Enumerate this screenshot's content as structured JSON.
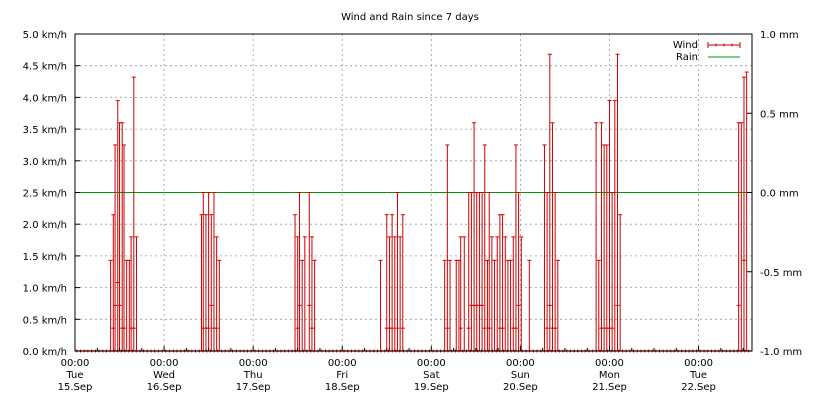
{
  "chart_data": {
    "type": "line",
    "title": "Wind and Rain since 7 days",
    "xlabel": "",
    "ylabel": "",
    "grid": true,
    "legend_position": "top-right",
    "x_unit": "days",
    "xlim": [
      0,
      7.6
    ],
    "ylim": [
      0,
      5
    ],
    "y2lim": [
      -1,
      1
    ],
    "y_ticks": [
      "0.0 km/h",
      "0.5 km/h",
      "1.0 km/h",
      "1.5 km/h",
      "2.0 km/h",
      "2.5 km/h",
      "3.0 km/h",
      "3.5 km/h",
      "4.0 km/h",
      "4.5 km/h",
      "5.0 km/h"
    ],
    "y2_ticks": [
      "-1.0 mm",
      "-0.5 mm",
      "0.0 mm",
      "0.5 mm",
      "1.0 mm"
    ],
    "x_ticks": [
      {
        "time": "00:00",
        "day": "Tue",
        "date": "15.Sep"
      },
      {
        "time": "00:00",
        "day": "Wed",
        "date": "16.Sep"
      },
      {
        "time": "00:00",
        "day": "Thu",
        "date": "17.Sep"
      },
      {
        "time": "00:00",
        "day": "Fri",
        "date": "18.Sep"
      },
      {
        "time": "00:00",
        "day": "Sat",
        "date": "19.Sep"
      },
      {
        "time": "00:00",
        "day": "Sun",
        "date": "20.Sep"
      },
      {
        "time": "00:00",
        "day": "Mon",
        "date": "21.Sep"
      },
      {
        "time": "00:00",
        "day": "Tue",
        "date": "22.Sep"
      }
    ],
    "series": [
      {
        "name": "Wind",
        "color": "#cc0000",
        "style": "errorbars",
        "bars": [
          [
            0.4,
            0,
            1.43
          ],
          [
            0.43,
            0.36,
            2.15
          ],
          [
            0.45,
            0.72,
            3.25
          ],
          [
            0.48,
            1.08,
            3.95
          ],
          [
            0.5,
            0.72,
            3.6
          ],
          [
            0.53,
            0.36,
            3.6
          ],
          [
            0.55,
            0.36,
            3.25
          ],
          [
            0.58,
            0,
            1.43
          ],
          [
            0.61,
            0,
            1.43
          ],
          [
            0.63,
            0.36,
            1.8
          ],
          [
            0.66,
            0.36,
            4.32
          ],
          [
            0.69,
            0,
            1.8
          ],
          [
            1.42,
            0,
            2.15
          ],
          [
            1.44,
            0.36,
            2.5
          ],
          [
            1.47,
            0.36,
            2.15
          ],
          [
            1.5,
            0.36,
            2.5
          ],
          [
            1.53,
            0.72,
            2.15
          ],
          [
            1.56,
            0.36,
            2.5
          ],
          [
            1.59,
            0.36,
            1.8
          ],
          [
            1.62,
            0,
            1.43
          ],
          [
            2.47,
            0,
            2.15
          ],
          [
            2.5,
            0.36,
            1.8
          ],
          [
            2.52,
            0.72,
            2.5
          ],
          [
            2.55,
            0,
            1.43
          ],
          [
            2.58,
            0,
            1.8
          ],
          [
            2.63,
            0.72,
            2.5
          ],
          [
            2.66,
            0.36,
            1.8
          ],
          [
            2.69,
            0,
            1.43
          ],
          [
            3.43,
            0,
            1.43
          ],
          [
            3.5,
            0.36,
            2.15
          ],
          [
            3.53,
            0.36,
            1.8
          ],
          [
            3.56,
            0.36,
            2.15
          ],
          [
            3.59,
            0,
            1.8
          ],
          [
            3.62,
            0.36,
            2.5
          ],
          [
            3.65,
            0,
            1.8
          ],
          [
            3.68,
            0.36,
            2.15
          ],
          [
            4.15,
            0,
            1.43
          ],
          [
            4.18,
            0.36,
            3.25
          ],
          [
            4.21,
            0,
            1.43
          ],
          [
            4.28,
            0,
            1.43
          ],
          [
            4.31,
            0,
            1.43
          ],
          [
            4.33,
            0.36,
            1.8
          ],
          [
            4.37,
            0,
            1.8
          ],
          [
            4.42,
            0.36,
            2.5
          ],
          [
            4.45,
            0.72,
            2.5
          ],
          [
            4.48,
            0.72,
            3.6
          ],
          [
            4.51,
            0.72,
            2.5
          ],
          [
            4.54,
            0.72,
            2.5
          ],
          [
            4.57,
            0.72,
            2.5
          ],
          [
            4.6,
            0.36,
            3.25
          ],
          [
            4.63,
            0,
            1.43
          ],
          [
            4.65,
            0.36,
            2.5
          ],
          [
            4.68,
            0,
            1.8
          ],
          [
            4.71,
            0,
            1.43
          ],
          [
            4.74,
            0,
            1.8
          ],
          [
            4.77,
            0.36,
            2.15
          ],
          [
            4.8,
            0.36,
            2.15
          ],
          [
            4.83,
            0,
            1.8
          ],
          [
            4.86,
            0,
            1.43
          ],
          [
            4.89,
            0,
            1.43
          ],
          [
            4.92,
            0.36,
            1.8
          ],
          [
            4.95,
            0.36,
            3.25
          ],
          [
            4.98,
            0.72,
            2.5
          ],
          [
            5.01,
            0,
            1.8
          ],
          [
            5.1,
            0,
            1.43
          ],
          [
            5.27,
            0,
            3.25
          ],
          [
            5.3,
            0.36,
            2.5
          ],
          [
            5.33,
            0.72,
            4.68
          ],
          [
            5.36,
            0.36,
            3.6
          ],
          [
            5.39,
            0.36,
            2.5
          ],
          [
            5.42,
            0,
            1.43
          ],
          [
            5.85,
            0,
            3.6
          ],
          [
            5.88,
            0,
            1.43
          ],
          [
            5.91,
            0.36,
            3.6
          ],
          [
            5.94,
            0.36,
            3.25
          ],
          [
            5.97,
            0.36,
            3.25
          ],
          [
            6.0,
            0.36,
            3.95
          ],
          [
            6.03,
            0.36,
            2.5
          ],
          [
            6.06,
            0,
            3.95
          ],
          [
            6.09,
            0.72,
            4.68
          ],
          [
            6.12,
            0,
            2.15
          ],
          [
            7.45,
            0.72,
            3.6
          ],
          [
            7.48,
            0,
            3.6
          ],
          [
            7.51,
            1.43,
            4.32
          ],
          [
            7.54,
            0,
            4.4
          ]
        ]
      },
      {
        "name": "Rain",
        "color": "#009900",
        "style": "line",
        "values": [
          [
            0,
            0
          ],
          [
            7.6,
            0
          ]
        ]
      }
    ]
  }
}
